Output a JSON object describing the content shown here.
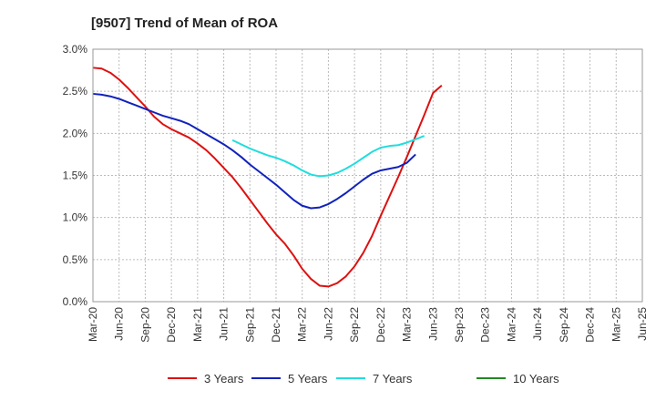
{
  "chart_data": {
    "type": "line",
    "title": "[9507]  Trend of Mean of ROA",
    "xlabel": "",
    "ylabel": "",
    "ylim": [
      0,
      3.0
    ],
    "grid": true,
    "legend_position": "bottom",
    "x_ticks": [
      "Mar-20",
      "Jun-20",
      "Sep-20",
      "Dec-20",
      "Mar-21",
      "Jun-21",
      "Sep-21",
      "Dec-21",
      "Mar-22",
      "Jun-22",
      "Sep-22",
      "Dec-22",
      "Mar-23",
      "Jun-23",
      "Sep-23",
      "Dec-23",
      "Mar-24",
      "Jun-24",
      "Sep-24",
      "Dec-24",
      "Mar-25",
      "Jun-25"
    ],
    "y_ticks": [
      {
        "value": 0.0,
        "label": "0.0%"
      },
      {
        "value": 0.5,
        "label": "0.5%"
      },
      {
        "value": 1.0,
        "label": "1.0%"
      },
      {
        "value": 1.5,
        "label": "1.5%"
      },
      {
        "value": 2.0,
        "label": "2.0%"
      },
      {
        "value": 2.5,
        "label": "2.5%"
      },
      {
        "value": 3.0,
        "label": "3.0%"
      }
    ],
    "series": [
      {
        "name": "3 Years",
        "color": "#dd1111",
        "start_index": 0,
        "values": [
          2.78,
          2.77,
          2.72,
          2.64,
          2.54,
          2.43,
          2.32,
          2.2,
          2.11,
          2.05,
          2.0,
          1.95,
          1.88,
          1.8,
          1.7,
          1.59,
          1.48,
          1.35,
          1.21,
          1.07,
          0.93,
          0.8,
          0.69,
          0.55,
          0.39,
          0.27,
          0.19,
          0.18,
          0.22,
          0.3,
          0.42,
          0.58,
          0.78,
          1.02,
          1.25,
          1.48,
          1.72,
          1.97,
          2.22,
          2.48,
          2.57
        ]
      },
      {
        "name": "5 Years",
        "color": "#1122bb",
        "start_index": 0,
        "values": [
          2.47,
          2.46,
          2.44,
          2.41,
          2.37,
          2.33,
          2.29,
          2.25,
          2.21,
          2.18,
          2.15,
          2.11,
          2.05,
          1.99,
          1.93,
          1.87,
          1.8,
          1.72,
          1.63,
          1.55,
          1.47,
          1.39,
          1.3,
          1.21,
          1.14,
          1.11,
          1.12,
          1.16,
          1.22,
          1.29,
          1.37,
          1.45,
          1.52,
          1.56,
          1.58,
          1.6,
          1.65,
          1.75
        ]
      },
      {
        "name": "7 Years",
        "color": "#22dddd",
        "start_index": 16,
        "values": [
          1.92,
          1.87,
          1.82,
          1.78,
          1.74,
          1.71,
          1.67,
          1.62,
          1.56,
          1.51,
          1.49,
          1.5,
          1.53,
          1.58,
          1.64,
          1.71,
          1.78,
          1.83,
          1.85,
          1.86,
          1.89,
          1.93,
          1.97
        ]
      },
      {
        "name": "10 Years",
        "color": "#228822",
        "start_index": 0,
        "values": []
      }
    ]
  }
}
